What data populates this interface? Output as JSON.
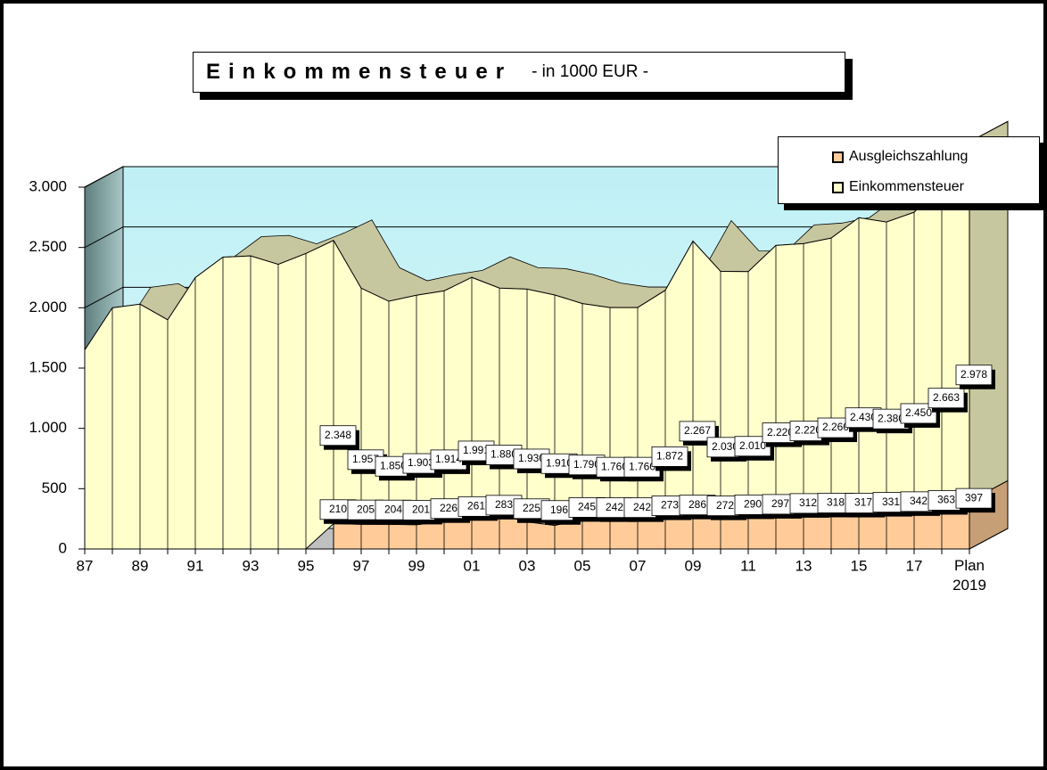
{
  "chart_data": {
    "type": "area3d",
    "title": "Einkommensteuer",
    "subtitle": "- in 1000 EUR -",
    "categories": [
      "87",
      null,
      "89",
      null,
      "91",
      null,
      "93",
      null,
      "95",
      null,
      "97",
      null,
      "99",
      null,
      "01",
      null,
      "03",
      null,
      "05",
      null,
      "07",
      null,
      "09",
      null,
      "11",
      null,
      "13",
      null,
      "15",
      null,
      "17",
      null,
      "Plan 2019"
    ],
    "series": [
      {
        "name": "Ausgleichszahlung",
        "color": "#ffcc99",
        "values": [
          null,
          null,
          null,
          null,
          null,
          null,
          null,
          null,
          null,
          210,
          205,
          204,
          201,
          226,
          261,
          283,
          225,
          196,
          245,
          242,
          242,
          273,
          286,
          272,
          290,
          297,
          312,
          318,
          317,
          331,
          342,
          363,
          397
        ]
      },
      {
        "name": "Einkommensteuer",
        "color": "#ffffcc",
        "values": [
          1650,
          2000,
          2030,
          1900,
          2250,
          2420,
          2430,
          2360,
          2450,
          2348,
          1957,
          1850,
          1903,
          1914,
          1991,
          1880,
          1930,
          1910,
          1790,
          1760,
          1760,
          1872,
          2267,
          2030,
          2010,
          2220,
          2220,
          2260,
          2430,
          2380,
          2450,
          2663,
          2978
        ],
        "value_labels": [
          null,
          null,
          null,
          null,
          null,
          null,
          null,
          null,
          null,
          "2.348",
          "1.957",
          "1.850",
          "1.903",
          "1.914",
          "1.991",
          "1.880",
          "1.930",
          "1.910",
          "1.790",
          "1.760",
          "1.760",
          "1.872",
          "2.267",
          "2.030",
          "2.010",
          "2.220",
          "2.220",
          "2.260",
          "2.430",
          "2.380",
          "2.450",
          "2.663",
          "2.978"
        ]
      }
    ],
    "ylim": [
      0,
      3000
    ],
    "yticks": [
      0,
      500,
      {
        "value": 1000,
        "label": "1.000"
      },
      {
        "value": 1500,
        "label": "1.500"
      },
      {
        "value": 2000,
        "label": "2.000"
      },
      {
        "value": 2500,
        "label": "2.500"
      },
      {
        "value": 3000,
        "label": "3.000"
      }
    ],
    "grid": true,
    "legend": "top-right"
  }
}
